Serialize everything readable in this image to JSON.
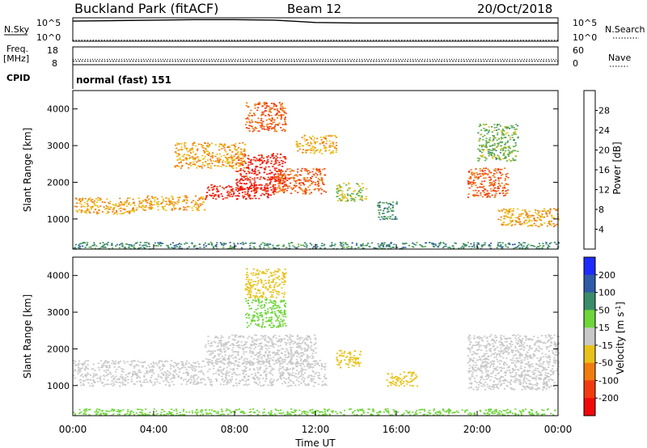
{
  "header": {
    "station": "Buckland Park (fitACF)",
    "beam": "Beam 12",
    "date": "20/Oct/2018"
  },
  "side_labels": {
    "nsky": "N.Sky",
    "nsky_ticks": [
      "10^5",
      "10^0"
    ],
    "nsearch": "N.Search",
    "nsearch_ticks": [
      "10^5",
      "10^0"
    ],
    "freq_line1": "Freq.",
    "freq_line2": "[MHz]",
    "freq_ticks": [
      "18",
      "8"
    ],
    "nave": "Nave",
    "nave_ticks": [
      "60",
      "0"
    ],
    "cpid": "CPID",
    "cpid_text": "normal (fast) 151"
  },
  "chart_data": [
    {
      "type": "line",
      "name_label": "N.Sky / N.Search",
      "x": [
        0,
        2,
        4,
        6,
        8,
        10,
        12,
        14,
        16,
        18,
        20,
        22,
        24
      ],
      "series": [
        {
          "name": "N.Sky",
          "values": [
            4.3,
            4.4,
            4.5,
            4.6,
            4.6,
            4.5,
            4.0,
            3.9,
            3.9,
            3.9,
            3.9,
            3.9,
            3.9
          ]
        },
        {
          "name": "N.Search",
          "values": [
            0.2,
            0.2,
            0.2,
            0.2,
            0.2,
            0.2,
            0.2,
            0.2,
            0.2,
            0.2,
            0.2,
            0.2,
            0.2
          ]
        }
      ],
      "ylim": [
        0,
        5
      ]
    },
    {
      "type": "line",
      "name_label": "Freq. / Nave",
      "x": [
        0,
        4,
        8,
        12,
        16,
        20,
        24
      ],
      "series": [
        {
          "name": "Freq.",
          "values": [
            10,
            10,
            10,
            10,
            10,
            10,
            10
          ]
        },
        {
          "name": "Nave",
          "values": [
            11,
            11,
            11,
            11,
            11,
            11,
            11
          ]
        }
      ],
      "ylim": [
        8,
        18
      ]
    },
    {
      "type": "heatmap",
      "panel": "power",
      "ylabel": "Slant Range [km]",
      "x_ticks": [
        "00:00",
        "04:00",
        "08:00",
        "12:00",
        "16:00",
        "20:00",
        "00:00"
      ],
      "y_ticks": [
        1000,
        2000,
        3000,
        4000
      ],
      "xlim": [
        0,
        24
      ],
      "ylim": [
        180,
        4500
      ],
      "colorbar": {
        "label": "Power [dB]",
        "ticks": [
          "4",
          "8",
          "12",
          "16",
          "20",
          "24",
          "28"
        ],
        "colors": [
          "#1e2bff",
          "#2f5aa8",
          "#3b8c6a",
          "#64b04a",
          "#e8c21a",
          "#f07d10",
          "#f23a10",
          "#f20a0a"
        ]
      },
      "regions": [
        {
          "x0": 0.0,
          "x1": 3.0,
          "y0": 1150,
          "y1": 1600,
          "v": 20
        },
        {
          "x0": 3.0,
          "x1": 6.5,
          "y0": 1250,
          "y1": 1650,
          "v": 20
        },
        {
          "x0": 6.5,
          "x1": 10.0,
          "y0": 1550,
          "y1": 1950,
          "v": 28
        },
        {
          "x0": 8.0,
          "x1": 10.5,
          "y0": 1800,
          "y1": 2800,
          "v": 28
        },
        {
          "x0": 10.0,
          "x1": 12.5,
          "y0": 1700,
          "y1": 2400,
          "v": 24
        },
        {
          "x0": 5.0,
          "x1": 8.5,
          "y0": 2400,
          "y1": 3100,
          "v": 20
        },
        {
          "x0": 8.5,
          "x1": 10.5,
          "y0": 3400,
          "y1": 4200,
          "v": 24
        },
        {
          "x0": 11.0,
          "x1": 13.0,
          "y0": 2800,
          "y1": 3300,
          "v": 20
        },
        {
          "x0": 13.0,
          "x1": 14.5,
          "y0": 1500,
          "y1": 2000,
          "v": 16
        },
        {
          "x0": 15.0,
          "x1": 16.0,
          "y0": 1000,
          "y1": 1500,
          "v": 10
        },
        {
          "x0": 19.5,
          "x1": 21.5,
          "y0": 1600,
          "y1": 2400,
          "v": 24
        },
        {
          "x0": 21.0,
          "x1": 24.0,
          "y0": 800,
          "y1": 1300,
          "v": 20
        },
        {
          "x0": 20.0,
          "x1": 22.0,
          "y0": 2600,
          "y1": 3600,
          "v": 14
        },
        {
          "x0": 0.0,
          "x1": 24.0,
          "y0": 200,
          "y1": 380,
          "v": 10
        }
      ]
    },
    {
      "type": "heatmap",
      "panel": "velocity",
      "ylabel": "Slant Range [km]",
      "xlabel": "Time UT",
      "x_ticks": [
        "00:00",
        "04:00",
        "08:00",
        "12:00",
        "16:00",
        "20:00",
        "00:00"
      ],
      "y_ticks": [
        1000,
        2000,
        3000,
        4000
      ],
      "xlim": [
        0,
        24
      ],
      "ylim": [
        180,
        4500
      ],
      "colorbar": {
        "label": "Velocity [m s^-1]",
        "ticks": [
          "200",
          "100",
          "50",
          "15",
          "-15",
          "-50",
          "-100",
          "-200"
        ],
        "colors": [
          "#1e2bff",
          "#2f5aa8",
          "#3b8c6a",
          "#6ed63a",
          "#c8c8c8",
          "#e8c21a",
          "#f07d10",
          "#f23a10",
          "#f20a0a"
        ]
      },
      "regions": [
        {
          "x0": 0.0,
          "x1": 12.5,
          "y0": 1000,
          "y1": 1700,
          "v": 0
        },
        {
          "x0": 6.5,
          "x1": 12.0,
          "y0": 1600,
          "y1": 2400,
          "v": 0
        },
        {
          "x0": 8.5,
          "x1": 10.5,
          "y0": 2600,
          "y1": 3400,
          "v": 30
        },
        {
          "x0": 8.5,
          "x1": 10.5,
          "y0": 3400,
          "y1": 4200,
          "v": -30
        },
        {
          "x0": 13.0,
          "x1": 14.2,
          "y0": 1500,
          "y1": 2000,
          "v": -30
        },
        {
          "x0": 15.5,
          "x1": 17.0,
          "y0": 1000,
          "y1": 1400,
          "v": -30
        },
        {
          "x0": 19.5,
          "x1": 24.0,
          "y0": 900,
          "y1": 2400,
          "v": 0
        },
        {
          "x0": 0.0,
          "x1": 24.0,
          "y0": 200,
          "y1": 380,
          "v": 30
        }
      ]
    }
  ]
}
